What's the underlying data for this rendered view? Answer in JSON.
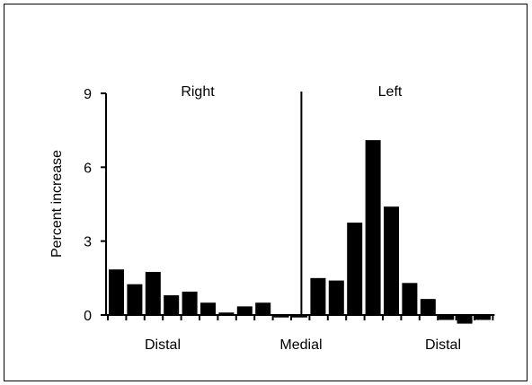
{
  "chart_data": {
    "type": "bar",
    "ylabel": "Percent increase",
    "ylim": [
      0,
      9
    ],
    "yticks": [
      0,
      3,
      6,
      9
    ],
    "panel_labels": {
      "right": "Right",
      "left": "Left"
    },
    "x_labels": {
      "distal_right": "Distal",
      "medial": "Medial",
      "distal_left": "Distal"
    },
    "divider_after_index": 11,
    "values": [
      1.85,
      1.25,
      1.75,
      0.8,
      0.95,
      0.5,
      0.1,
      0.35,
      0.5,
      -0.1,
      -0.1,
      1.5,
      1.4,
      3.75,
      7.1,
      4.4,
      1.3,
      0.65,
      -0.2,
      -0.35,
      -0.2
    ],
    "bar_color": "#000000",
    "grid": false
  }
}
